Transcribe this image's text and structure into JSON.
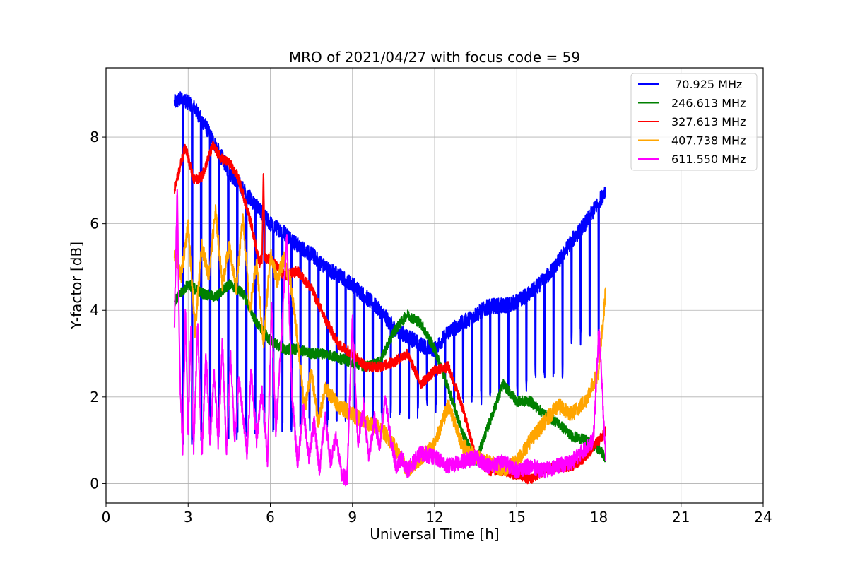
{
  "chart_data": {
    "type": "line",
    "title": "MRO of 2021/04/27 with focus code = 59",
    "xlabel": "Universal Time [h]",
    "ylabel": "Y-factor [dB]",
    "xlim": [
      0,
      24
    ],
    "ylim": [
      -0.45,
      9.6
    ],
    "xticks": [
      0,
      3,
      6,
      9,
      12,
      15,
      18,
      21,
      24
    ],
    "yticks": [
      0,
      2,
      4,
      6,
      8
    ],
    "grid": true,
    "legend_position": "upper right",
    "series": [
      {
        "name": " 70.925 MHz",
        "color": "#0000ff",
        "x": [
          2.5,
          2.8,
          3.2,
          3.6,
          4.0,
          4.5,
          5.0,
          5.5,
          6.0,
          6.5,
          7.0,
          7.5,
          8.0,
          8.5,
          9.0,
          9.5,
          10.0,
          10.5,
          11.0,
          11.5,
          12.0,
          12.5,
          13.0,
          13.5,
          14.0,
          14.5,
          15.0,
          15.5,
          16.0,
          16.5,
          17.0,
          17.5,
          18.0,
          18.25
        ],
        "y": [
          8.8,
          8.9,
          8.7,
          8.3,
          7.8,
          7.2,
          6.8,
          6.4,
          6.0,
          5.8,
          5.5,
          5.3,
          5.0,
          4.8,
          4.6,
          4.3,
          4.0,
          3.6,
          3.4,
          3.2,
          3.1,
          3.5,
          3.7,
          3.9,
          4.1,
          4.1,
          4.2,
          4.4,
          4.7,
          5.1,
          5.6,
          6.0,
          6.5,
          6.8
        ],
        "dips_to": [
          1.1,
          1.2,
          1.3,
          1.4,
          1.5,
          1.6,
          1.7,
          1.8,
          2.0,
          2.2,
          2.6,
          3.4
        ],
        "dip_period_h": 0.33
      },
      {
        "name": "246.613 MHz",
        "color": "#008000",
        "x": [
          2.5,
          3.0,
          3.5,
          4.0,
          4.5,
          5.0,
          5.5,
          6.0,
          6.5,
          7.0,
          7.5,
          8.0,
          8.5,
          9.0,
          9.5,
          10.0,
          10.5,
          11.0,
          11.5,
          12.0,
          12.5,
          13.0,
          13.5,
          14.0,
          14.5,
          15.0,
          15.5,
          16.0,
          16.5,
          17.0,
          17.5,
          18.0,
          18.25
        ],
        "y": [
          4.2,
          4.6,
          4.4,
          4.3,
          4.6,
          4.4,
          3.7,
          3.3,
          3.1,
          3.1,
          3.0,
          3.0,
          2.9,
          2.8,
          2.7,
          2.8,
          3.5,
          3.9,
          3.7,
          3.1,
          2.2,
          1.2,
          0.5,
          1.4,
          2.3,
          1.9,
          1.9,
          1.6,
          1.4,
          1.1,
          1.0,
          0.8,
          0.6
        ]
      },
      {
        "name": "327.613 MHz",
        "color": "#ff0000",
        "x": [
          2.5,
          2.9,
          3.2,
          3.5,
          3.9,
          4.2,
          4.5,
          4.8,
          5.0,
          5.3,
          5.6,
          5.7,
          5.75,
          5.8,
          6.0,
          6.5,
          7.0,
          7.5,
          8.0,
          8.5,
          9.0,
          9.5,
          10.0,
          10.5,
          11.0,
          11.5,
          12.0,
          12.5,
          13.0,
          13.5,
          14.0,
          14.5,
          15.0,
          15.5,
          16.0,
          16.5,
          17.0,
          17.5,
          18.0,
          18.25
        ],
        "y": [
          6.8,
          7.8,
          7.0,
          7.1,
          7.8,
          7.5,
          7.4,
          7.1,
          6.7,
          6.0,
          5.1,
          5.2,
          7.3,
          5.2,
          5.2,
          4.8,
          4.9,
          4.5,
          3.8,
          3.2,
          3.0,
          2.7,
          2.7,
          2.8,
          3.0,
          2.3,
          2.6,
          2.7,
          1.8,
          0.6,
          0.3,
          0.3,
          0.2,
          0.1,
          0.3,
          0.4,
          0.4,
          0.6,
          1.0,
          1.2
        ]
      },
      {
        "name": "407.738 MHz",
        "color": "#ffa500",
        "x": [
          2.5,
          2.75,
          3.0,
          3.25,
          3.5,
          3.75,
          4.0,
          4.25,
          4.5,
          4.75,
          5.0,
          5.25,
          5.5,
          5.75,
          6.0,
          6.25,
          6.5,
          6.75,
          7.0,
          7.25,
          7.5,
          7.75,
          8.0,
          8.5,
          9.0,
          9.5,
          10.0,
          10.5,
          11.0,
          11.5,
          12.0,
          12.5,
          13.0,
          13.5,
          14.0,
          14.5,
          15.0,
          15.5,
          16.0,
          16.5,
          17.0,
          17.5,
          18.0,
          18.25
        ],
        "y": [
          5.3,
          4.8,
          6.0,
          3.5,
          5.5,
          4.8,
          6.3,
          4.6,
          5.5,
          4.5,
          6.2,
          4.0,
          5.1,
          3.2,
          5.3,
          4.7,
          5.2,
          4.6,
          3.3,
          1.7,
          2.6,
          1.4,
          2.2,
          1.8,
          1.6,
          1.4,
          1.3,
          0.9,
          0.3,
          0.6,
          0.9,
          1.8,
          0.9,
          0.6,
          0.5,
          0.3,
          0.5,
          1.0,
          1.4,
          1.8,
          1.6,
          1.9,
          2.6,
          4.5
        ]
      },
      {
        "name": "611.550 MHz",
        "color": "#ff00ff",
        "x": [
          2.5,
          2.6,
          2.7,
          2.8,
          2.9,
          3.0,
          3.1,
          3.2,
          3.35,
          3.5,
          3.65,
          3.8,
          3.95,
          4.1,
          4.25,
          4.4,
          4.55,
          4.7,
          4.85,
          5.0,
          5.15,
          5.3,
          5.5,
          5.7,
          5.9,
          6.05,
          6.2,
          6.4,
          6.6,
          6.8,
          7.0,
          7.2,
          7.4,
          7.6,
          7.8,
          8.0,
          8.2,
          8.4,
          8.6,
          8.8,
          9.0,
          9.2,
          9.4,
          9.6,
          9.8,
          10.0,
          10.2,
          10.4,
          10.6,
          10.8,
          11.0,
          11.5,
          12.0,
          12.5,
          13.0,
          13.5,
          14.0,
          14.5,
          15.0,
          15.5,
          16.0,
          16.5,
          17.0,
          17.5,
          17.8,
          18.0,
          18.25
        ],
        "y": [
          3.7,
          6.8,
          2.5,
          0.8,
          4.0,
          1.2,
          3.6,
          0.8,
          3.7,
          0.6,
          3.0,
          1.0,
          2.6,
          0.9,
          3.3,
          0.7,
          3.0,
          1.0,
          2.4,
          1.6,
          0.7,
          2.6,
          1.0,
          2.2,
          0.5,
          4.2,
          1.2,
          3.3,
          5.7,
          2.0,
          0.4,
          1.8,
          0.6,
          1.4,
          0.3,
          1.6,
          0.5,
          1.1,
          0.2,
          0.1,
          3.8,
          0.9,
          1.8,
          0.6,
          1.5,
          0.8,
          2.0,
          1.0,
          0.4,
          0.6,
          0.3,
          0.7,
          0.6,
          0.4,
          0.5,
          0.6,
          0.4,
          0.5,
          0.3,
          0.4,
          0.3,
          0.4,
          0.5,
          0.8,
          1.0,
          3.6,
          0.6
        ]
      }
    ]
  }
}
